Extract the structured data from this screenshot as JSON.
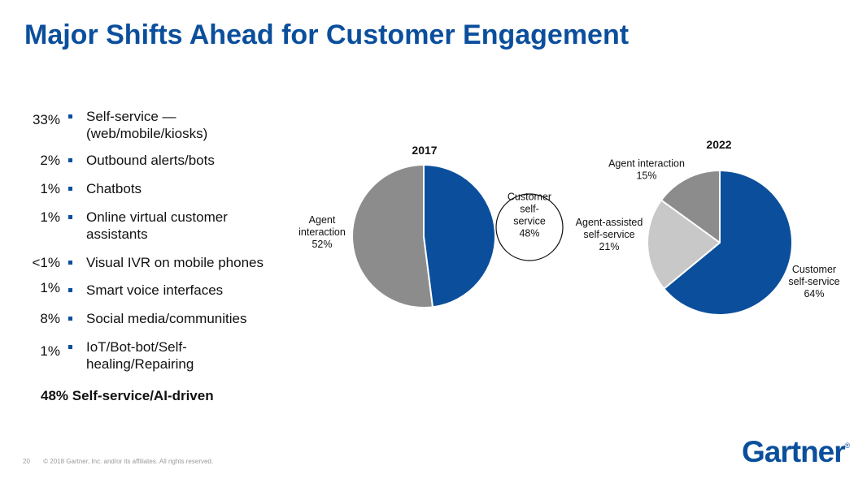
{
  "title": "Major Shifts Ahead for Customer Engagement",
  "bullets": [
    {
      "pct": "33%",
      "text": "Self-service — (web/mobile/kiosks)"
    },
    {
      "pct": "2%",
      "text": "Outbound alerts/bots"
    },
    {
      "pct": "1%",
      "text": "Chatbots"
    },
    {
      "pct": "1%",
      "text": "Online virtual customer assistants"
    },
    {
      "pct": "<1%",
      "text": "Visual IVR on mobile phones"
    },
    {
      "pct": "1%",
      "text": "Smart voice interfaces"
    },
    {
      "pct": "8%",
      "text": "Social media/communities"
    },
    {
      "pct": "1%",
      "text": "IoT/Bot-bot/Self-healing/Repairing"
    }
  ],
  "summary": "48% Self-service/AI-driven",
  "colors": {
    "blue": "#0b4f9c",
    "gray": "#8c8c8c",
    "light_gray": "#c8c8c8",
    "title": "#0b4f9c"
  },
  "chart_data": [
    {
      "type": "pie",
      "title": "2017",
      "slices": [
        {
          "label_lines": [
            "Customer",
            "self-",
            "service",
            "48%"
          ],
          "value": 48,
          "color": "#0b4f9c"
        },
        {
          "label_lines": [
            "Agent",
            "interaction",
            "52%"
          ],
          "value": 52,
          "color": "#8c8c8c"
        }
      ]
    },
    {
      "type": "pie",
      "title": "2022",
      "slices": [
        {
          "label_lines": [
            "Customer",
            "self-service",
            "64%"
          ],
          "value": 64,
          "color": "#0b4f9c"
        },
        {
          "label_lines": [
            "Agent-assisted",
            "self-service",
            "21%"
          ],
          "value": 21,
          "color": "#c8c8c8"
        },
        {
          "label_lines": [
            "Agent interaction",
            "15%"
          ],
          "value": 15,
          "color": "#8c8c8c"
        }
      ]
    }
  ],
  "footer": {
    "page": "20",
    "copyright": "© 2018 Gartner, Inc. and/or its affiliates. All rights reserved."
  },
  "logo": {
    "text": "Gartner",
    "mark": "®"
  }
}
